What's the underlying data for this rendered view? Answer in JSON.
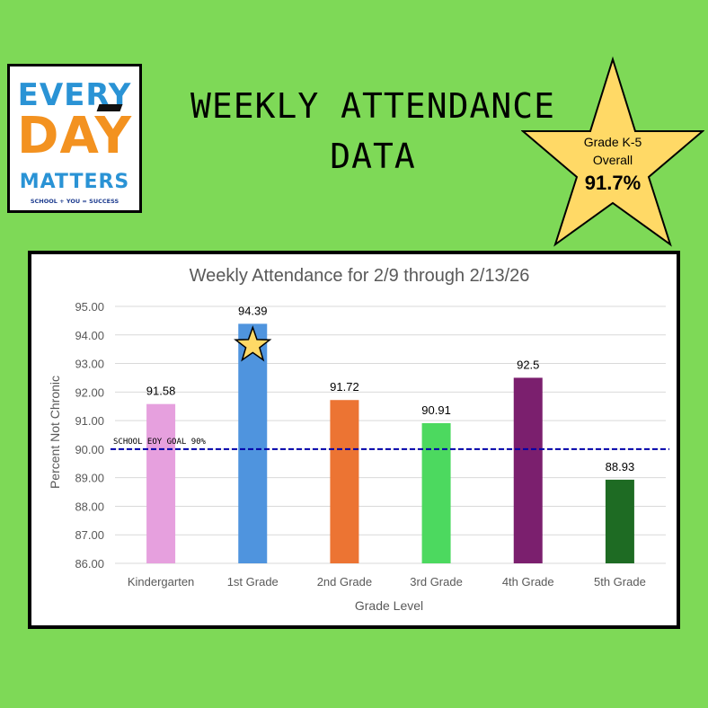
{
  "logo": {
    "line1": "EVERY",
    "line2": "DAY",
    "line3": "MATTERS",
    "tagline": "SCHOOL + YOU = SUCCESS"
  },
  "header": {
    "title_line1": "WEEKLY ATTENDANCE",
    "title_line2": "DATA"
  },
  "badge": {
    "line1": "Grade K-5",
    "line2": "Overall",
    "value": "91.7%",
    "color": "#ffd966"
  },
  "chart_data": {
    "type": "bar",
    "title": "Weekly Attendance for 2/9 through 2/13/26",
    "xlabel": "Grade Level",
    "ylabel": "Percent Not Chronic",
    "ylim": [
      86,
      95
    ],
    "yticks": [
      "86.00",
      "87.00",
      "88.00",
      "89.00",
      "90.00",
      "91.00",
      "92.00",
      "93.00",
      "94.00",
      "95.00"
    ],
    "grid": true,
    "categories": [
      "Kindergarten",
      "1st Grade",
      "2nd Grade",
      "3rd Grade",
      "4th Grade",
      "5th Grade"
    ],
    "values": [
      91.58,
      94.39,
      91.72,
      90.91,
      92.5,
      88.93
    ],
    "value_labels": [
      "91.58",
      "94.39",
      "91.72",
      "90.91",
      "92.5",
      "88.93"
    ],
    "colors": [
      "#e6a0de",
      "#4f94de",
      "#ec7433",
      "#4cd95f",
      "#7b1f6e",
      "#1e6b23"
    ],
    "goal": {
      "value": 90,
      "label": "SCHOOL EOY GOAL 90%",
      "color": "#0000aa"
    },
    "highlight_star_category": "1st Grade"
  }
}
